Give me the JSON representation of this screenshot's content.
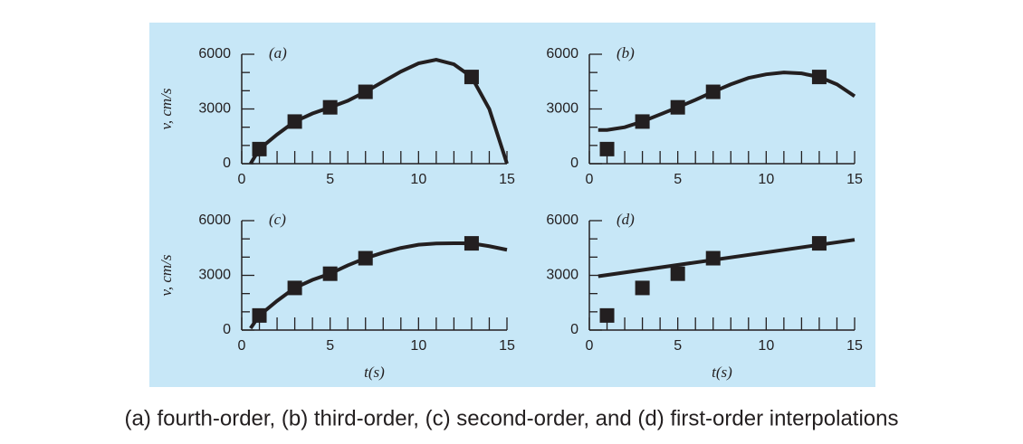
{
  "caption": "(a) fourth-order, (b) third-order, (c) second-order, and (d) first-order interpolations",
  "chart_data": [
    {
      "type": "scatter",
      "label": "(a)",
      "ylabel": "v, cm/s",
      "color": "#231f20",
      "xlim": [
        0,
        15
      ],
      "ylim": [
        0,
        6000
      ],
      "xticks": [
        0,
        5,
        10,
        15
      ],
      "yticks": [
        0,
        3000,
        6000
      ],
      "minor_xticks": [
        1,
        2,
        3,
        4,
        6,
        7,
        8,
        9,
        11,
        12,
        13,
        14
      ],
      "minor_yticks": [
        1000,
        2000,
        4000,
        5000
      ],
      "x": [
        1,
        3,
        5,
        7,
        13
      ],
      "values": [
        800,
        2310,
        3090,
        3940,
        4755
      ],
      "curve": {
        "x": [
          0.5,
          1,
          2,
          3,
          4,
          5,
          6,
          7,
          8,
          9,
          10,
          11,
          12,
          13,
          14,
          15
        ],
        "values": [
          0,
          800,
          1600,
          2310,
          2750,
          3090,
          3450,
          3940,
          4500,
          5050,
          5500,
          5700,
          5450,
          4755,
          3000,
          0
        ]
      }
    },
    {
      "type": "scatter",
      "label": "(b)",
      "color": "#231f20",
      "xlim": [
        0,
        15
      ],
      "ylim": [
        0,
        6000
      ],
      "xticks": [
        0,
        5,
        10,
        15
      ],
      "yticks": [
        0,
        3000,
        6000
      ],
      "minor_xticks": [
        1,
        2,
        3,
        4,
        6,
        7,
        8,
        9,
        11,
        12,
        13,
        14
      ],
      "minor_yticks": [
        1000,
        2000,
        4000,
        5000
      ],
      "x": [
        1,
        3,
        5,
        7,
        13
      ],
      "values": [
        800,
        2310,
        3090,
        3940,
        4755
      ],
      "curve": {
        "x": [
          0.5,
          1,
          2,
          3,
          4,
          5,
          6,
          7,
          8,
          9,
          10,
          11,
          12,
          13,
          14,
          15
        ],
        "values": [
          1850,
          1850,
          2000,
          2310,
          2700,
          3090,
          3500,
          3940,
          4350,
          4700,
          4900,
          5000,
          4950,
          4755,
          4350,
          3700
        ]
      }
    },
    {
      "type": "scatter",
      "label": "(c)",
      "ylabel": "v, cm/s",
      "xlabel": "t(s)",
      "color": "#231f20",
      "xlim": [
        0,
        15
      ],
      "ylim": [
        0,
        6000
      ],
      "xticks": [
        0,
        5,
        10,
        15
      ],
      "yticks": [
        0,
        3000,
        6000
      ],
      "minor_xticks": [
        1,
        2,
        3,
        4,
        6,
        7,
        8,
        9,
        11,
        12,
        13,
        14
      ],
      "minor_yticks": [
        1000,
        2000,
        4000,
        5000
      ],
      "x": [
        1,
        3,
        5,
        7,
        13
      ],
      "values": [
        800,
        2310,
        3090,
        3940,
        4755
      ],
      "curve": {
        "x": [
          0.5,
          1,
          2,
          3,
          4,
          5,
          6,
          7,
          8,
          9,
          10,
          11,
          12,
          13,
          14,
          15
        ],
        "values": [
          100,
          800,
          1600,
          2310,
          2750,
          3090,
          3550,
          3940,
          4250,
          4500,
          4680,
          4750,
          4760,
          4755,
          4600,
          4400
        ]
      }
    },
    {
      "type": "scatter",
      "label": "(d)",
      "xlabel": "t(s)",
      "color": "#231f20",
      "xlim": [
        0,
        15
      ],
      "ylim": [
        0,
        6000
      ],
      "xticks": [
        0,
        5,
        10,
        15
      ],
      "yticks": [
        0,
        3000,
        6000
      ],
      "minor_xticks": [
        1,
        2,
        3,
        4,
        6,
        7,
        8,
        9,
        11,
        12,
        13,
        14
      ],
      "minor_yticks": [
        1000,
        2000,
        4000,
        5000
      ],
      "x": [
        1,
        3,
        5,
        7,
        13
      ],
      "values": [
        800,
        2310,
        3090,
        3940,
        4755
      ],
      "curve": {
        "x": [
          0.5,
          15
        ],
        "values": [
          2950,
          4950
        ]
      }
    }
  ]
}
